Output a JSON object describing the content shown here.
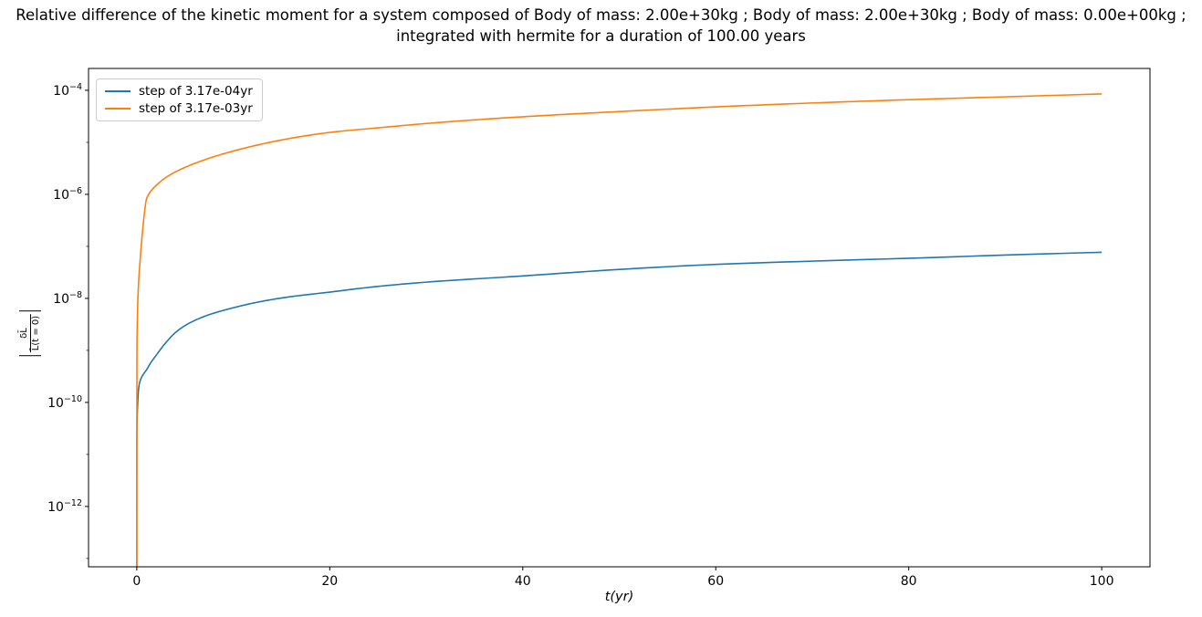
{
  "title": {
    "line1": "Relative difference of the kinetic moment for a system composed of Body of mass: 2.00e+30kg ; Body of mass: 2.00e+30kg ; Body of mass: 0.00e+00kg ;",
    "line2": "integrated with hermite for a duration of 100.00 years"
  },
  "colors": {
    "background": "#ffffff",
    "axis": "#000000",
    "legend_border": "#cccccc",
    "series_blue": "#1f77b4",
    "series_orange": "#ff7f0e"
  },
  "chart_data": {
    "type": "line",
    "title": "Relative difference of the kinetic moment for a system composed of Body of mass: 2.00e+30kg ; Body of mass: 2.00e+30kg ; Body of mass: 0.00e+00kg ; integrated with hermite for a duration of 100.00 years",
    "xlabel": "t(yr)",
    "ylabel": "|δL̄ / L̄(t = 0)|",
    "ylabel_numerator": "δL̄",
    "ylabel_denominator": "L̄(t = 0)",
    "xlim": [
      -5,
      105
    ],
    "ylim_exponents": [
      -13.16,
      -3.58
    ],
    "x_ticks": [
      0,
      20,
      40,
      60,
      80,
      100
    ],
    "y_tick_base": "10",
    "y_tick_exponents": [
      -4,
      -6,
      -8,
      -10,
      -12
    ],
    "y_minor_tick_exponents": [
      -5,
      -7,
      -9,
      -11,
      -13
    ],
    "grid": false,
    "yscale": "log",
    "legend_position": "upper left",
    "series": [
      {
        "name": "step of 3.17e-04yr",
        "color": "#1f77b4",
        "points": [
          [
            0.000317,
            1e-14
          ],
          [
            0.01,
            2e-11
          ],
          [
            0.03,
            4.5e-11
          ],
          [
            0.06,
            6.5e-11
          ],
          [
            0.1,
            1e-10
          ],
          [
            0.2,
            1.9e-10
          ],
          [
            0.35,
            2.6e-10
          ],
          [
            0.6,
            3.3e-10
          ],
          [
            1,
            4.2e-10
          ],
          [
            1.5,
            6e-10
          ],
          [
            2,
            8e-10
          ],
          [
            3,
            1.4e-09
          ],
          [
            4,
            2.2e-09
          ],
          [
            5,
            3e-09
          ],
          [
            7,
            4.5e-09
          ],
          [
            10,
            6.6e-09
          ],
          [
            13,
            8.8e-09
          ],
          [
            16,
            1.08e-08
          ],
          [
            20,
            1.32e-08
          ],
          [
            25,
            1.7e-08
          ],
          [
            30,
            2.05e-08
          ],
          [
            40,
            2.7e-08
          ],
          [
            50,
            3.6e-08
          ],
          [
            60,
            4.5e-08
          ],
          [
            70,
            5.2e-08
          ],
          [
            80,
            5.9e-08
          ],
          [
            90,
            6.8e-08
          ],
          [
            100,
            7.7e-08
          ]
        ]
      },
      {
        "name": "step of 3.17e-03yr",
        "color": "#ff7f0e",
        "points": [
          [
            0.00317,
            1e-14
          ],
          [
            0.02,
            9e-10
          ],
          [
            0.05,
            3e-09
          ],
          [
            0.1,
            8e-09
          ],
          [
            0.2,
            2.2e-08
          ],
          [
            0.35,
            5.5e-08
          ],
          [
            0.6,
            2e-07
          ],
          [
            0.8,
            4.5e-07
          ],
          [
            1,
            8e-07
          ],
          [
            1.3,
            1.05e-06
          ],
          [
            1.7,
            1.3e-06
          ],
          [
            2.2,
            1.6e-06
          ],
          [
            3,
            2.1e-06
          ],
          [
            4,
            2.7e-06
          ],
          [
            5,
            3.3e-06
          ],
          [
            7,
            4.6e-06
          ],
          [
            10,
            6.8e-06
          ],
          [
            13,
            9.3e-06
          ],
          [
            16,
            1.2e-05
          ],
          [
            20,
            1.55e-05
          ],
          [
            25,
            1.9e-05
          ],
          [
            30,
            2.3e-05
          ],
          [
            40,
            3.1e-05
          ],
          [
            50,
            3.9e-05
          ],
          [
            60,
            4.8e-05
          ],
          [
            70,
            5.7e-05
          ],
          [
            80,
            6.6e-05
          ],
          [
            90,
            7.5e-05
          ],
          [
            100,
            8.5e-05
          ]
        ]
      }
    ]
  }
}
